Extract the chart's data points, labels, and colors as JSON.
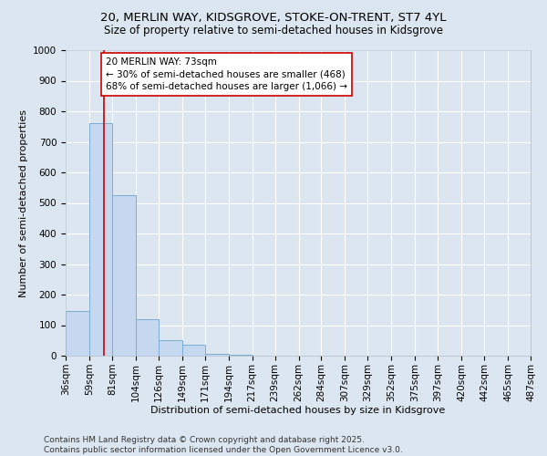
{
  "title_line1": "20, MERLIN WAY, KIDSGROVE, STOKE-ON-TRENT, ST7 4YL",
  "title_line2": "Size of property relative to semi-detached houses in Kidsgrove",
  "xlabel": "Distribution of semi-detached houses by size in Kidsgrove",
  "ylabel": "Number of semi-detached properties",
  "bin_edges": [
    36,
    59,
    81,
    104,
    126,
    149,
    171,
    194,
    217,
    239,
    262,
    284,
    307,
    329,
    352,
    375,
    397,
    420,
    442,
    465,
    487
  ],
  "bar_heights": [
    145,
    760,
    525,
    120,
    50,
    35,
    5,
    2,
    1,
    1,
    0,
    0,
    0,
    0,
    0,
    0,
    0,
    0,
    0,
    0
  ],
  "bar_color": "#c5d8f0",
  "bar_edge_color": "#7aadd4",
  "property_size": 73,
  "vline_color": "#cc0000",
  "annotation_text": "20 MERLIN WAY: 73sqm\n← 30% of semi-detached houses are smaller (468)\n68% of semi-detached houses are larger (1,066) →",
  "annotation_box_color": "#ffffff",
  "annotation_box_edge": "#cc0000",
  "ylim": [
    0,
    1000
  ],
  "yticks": [
    0,
    100,
    200,
    300,
    400,
    500,
    600,
    700,
    800,
    900,
    1000
  ],
  "background_color": "#dce6f0",
  "grid_color": "#ffffff",
  "footer_text": "Contains HM Land Registry data © Crown copyright and database right 2025.\nContains public sector information licensed under the Open Government Licence v3.0.",
  "title_fontsize": 9.5,
  "subtitle_fontsize": 8.5,
  "axis_label_fontsize": 8,
  "tick_fontsize": 7.5,
  "annotation_fontsize": 7.5,
  "footer_fontsize": 6.5
}
